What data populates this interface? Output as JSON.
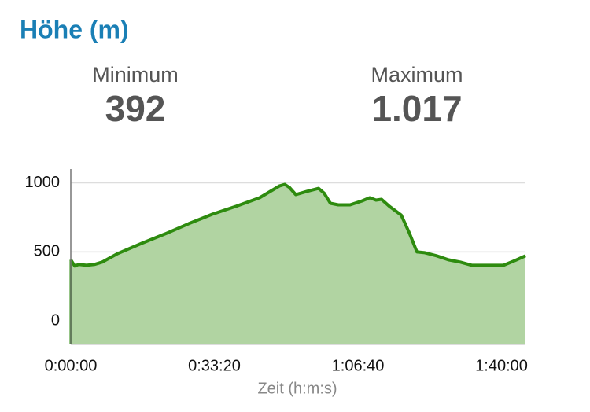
{
  "header": {
    "title": "Höhe (m)"
  },
  "stats": [
    {
      "label": "Minimum",
      "value": "392"
    },
    {
      "label": "Maximum",
      "value": "1.017"
    }
  ],
  "chart_data": {
    "type": "area",
    "x_label": "Zeit (h:m:s)",
    "x": [
      0,
      55,
      110,
      219,
      329,
      438,
      658,
      986,
      1315,
      1644,
      1973,
      2301,
      2630,
      2904,
      2981,
      3047,
      3134,
      3288,
      3452,
      3529,
      3616,
      3726,
      3890,
      4055,
      4164,
      4252,
      4329,
      4438,
      4603,
      4712,
      4822,
      4932,
      5096,
      5260,
      5425,
      5589,
      6027,
      6192,
      6334
    ],
    "series": [
      {
        "color": "#2e8b0f",
        "values": [
          443,
          398,
          409,
          403,
          409,
          426,
          489,
          562,
          631,
          705,
          773,
          830,
          892,
          977,
          989,
          966,
          915,
          938,
          960,
          926,
          852,
          841,
          841,
          869,
          892,
          875,
          881,
          830,
          767,
          642,
          500,
          494,
          472,
          443,
          426,
          403,
          403,
          438,
          472
        ]
      }
    ],
    "fill_color": "#b1d4a2",
    "xlim": [
      0,
      6334
    ],
    "ylim": [
      -170,
      1100
    ],
    "xticks": [
      {
        "value": 0,
        "label": "0:00:00"
      },
      {
        "value": 2000,
        "label": "0:33:20"
      },
      {
        "value": 4000,
        "label": "1:06:40"
      },
      {
        "value": 6000,
        "label": "1:40:00"
      }
    ],
    "yticks": [
      0,
      500,
      1000
    ],
    "grid": true
  }
}
